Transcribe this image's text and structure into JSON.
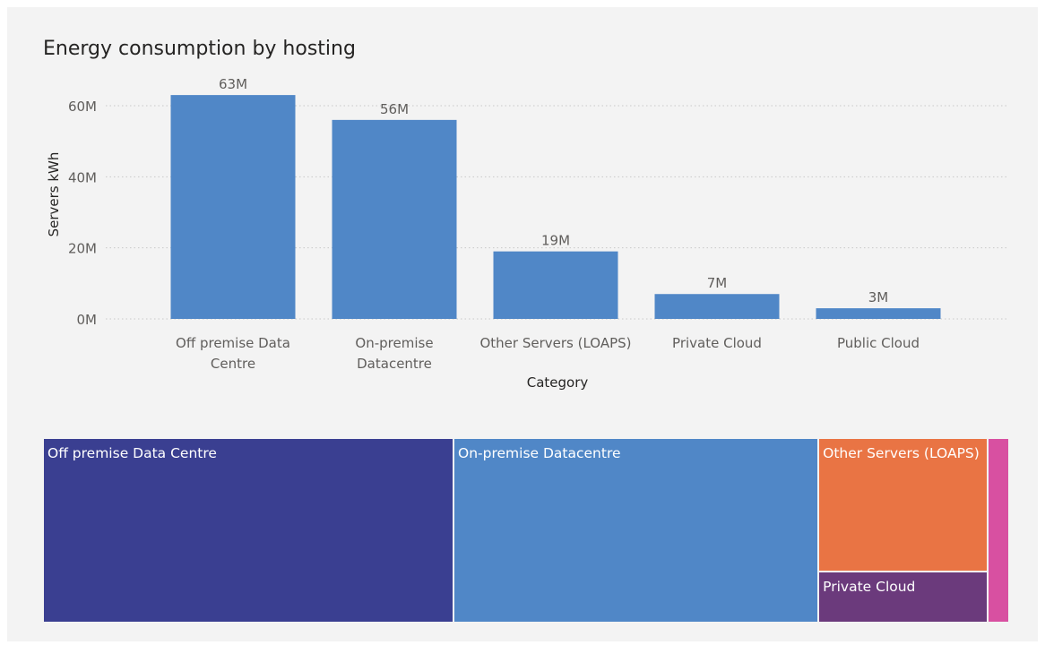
{
  "chart_data": [
    {
      "type": "bar",
      "title": "Energy consumption by hosting",
      "xlabel": "Category",
      "ylabel": "Servers kWh",
      "categories": [
        "Off premise Data Centre",
        "On-premise Datacentre",
        "Other Servers (LOAPS)",
        "Private Cloud",
        "Public Cloud"
      ],
      "category_lines": [
        [
          "Off premise Data",
          "Centre"
        ],
        [
          "On-premise",
          "Datacentre"
        ],
        [
          "Other Servers (LOAPS)"
        ],
        [
          "Private Cloud"
        ],
        [
          "Public Cloud"
        ]
      ],
      "values": [
        63,
        56,
        19,
        7,
        3
      ],
      "value_labels": [
        "63M",
        "56M",
        "19M",
        "7M",
        "3M"
      ],
      "yticks": [
        0,
        20,
        40,
        60
      ],
      "ytick_labels": [
        "0M",
        "20M",
        "40M",
        "60M"
      ],
      "ylim": [
        0,
        65
      ],
      "grid": true,
      "color": "#5087c7"
    },
    {
      "type": "treemap",
      "categories": [
        "Off premise Data Centre",
        "On-premise Datacentre",
        "Other Servers (LOAPS)",
        "Private Cloud",
        "Public Cloud"
      ],
      "labels": [
        "Off premise Data Centre",
        "On-premise Datacentre",
        "Other Servers (LOAPS)",
        "Private Cloud",
        ""
      ],
      "values": [
        63,
        56,
        19,
        7,
        3
      ],
      "colors": [
        "#3a3f91",
        "#5087c7",
        "#e97444",
        "#6b3a7c",
        "#d850a1"
      ]
    }
  ]
}
